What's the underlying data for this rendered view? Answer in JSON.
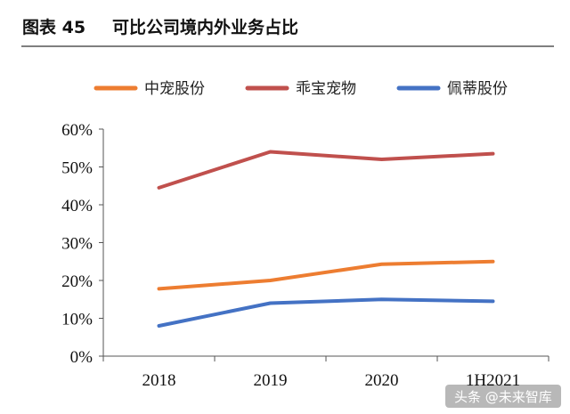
{
  "figure": {
    "label": "图表 45",
    "caption": "可比公司境内外业务占比"
  },
  "watermark": "头条 @未来智库",
  "chart_data": {
    "type": "line",
    "title": "可比公司境内外业务占比",
    "xlabel": "",
    "ylabel": "",
    "categories": [
      "2018",
      "2019",
      "2020",
      "1H2021"
    ],
    "y_ticks": [
      "0%",
      "10%",
      "20%",
      "30%",
      "40%",
      "50%",
      "60%"
    ],
    "ylim": [
      0,
      60
    ],
    "y_unit": "%",
    "grid": false,
    "legend_position": "top",
    "series": [
      {
        "name": "中宠股份",
        "color": "#ED7D31",
        "values": [
          17.8,
          20.0,
          24.3,
          25.0
        ]
      },
      {
        "name": "乖宝宠物",
        "color": "#C0504D",
        "values": [
          44.5,
          54.0,
          52.0,
          53.5
        ]
      },
      {
        "name": "佩蒂股份",
        "color": "#4472C4",
        "values": [
          8.0,
          14.0,
          15.0,
          14.5
        ]
      }
    ]
  }
}
